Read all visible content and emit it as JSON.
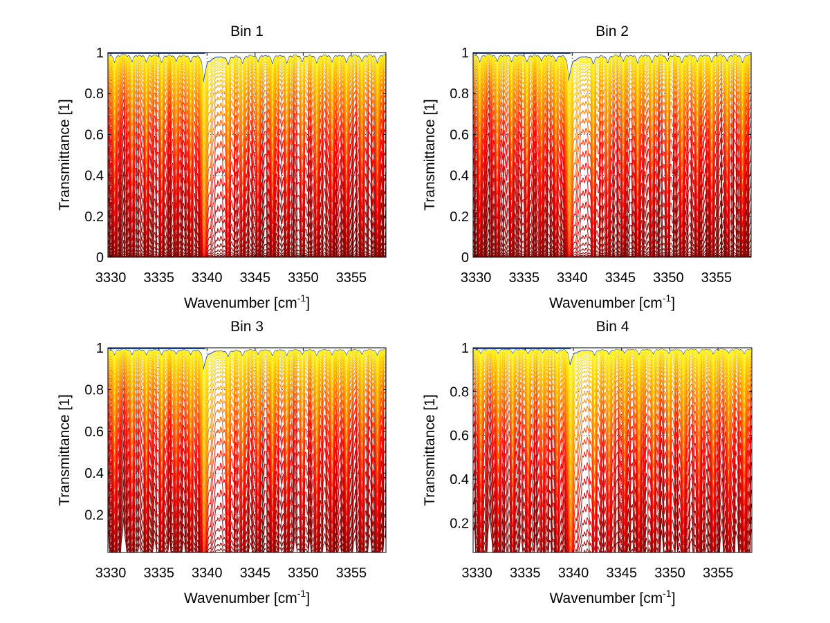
{
  "figure": {
    "background": "#ffffff"
  },
  "chart_data": [
    {
      "type": "line",
      "title": "Bin 1",
      "xlabel": "Wavenumber [cm",
      "xlabel_superscript": "-1",
      "xlabel_suffix": "]",
      "ylabel": "Transmittance [1]",
      "xlim": [
        3329.7,
        3358.6
      ],
      "ylim": [
        0,
        1
      ],
      "xticks": [
        3330,
        3335,
        3340,
        3345,
        3350,
        3355
      ],
      "xtick_labels": [
        "3330",
        "3335",
        "3340",
        "3345",
        "3350",
        "3355"
      ],
      "yticks": [
        0,
        0.2,
        0.4,
        0.6,
        0.8,
        1
      ],
      "ytick_labels": [
        "0",
        "0.2",
        "0.4",
        "0.6",
        "0.8",
        "1"
      ],
      "grid": true,
      "series_count": 40,
      "colormap": "hot (yellow near T=1, orange, red, dark red at low T; blue trace at T=1)",
      "line_centers_cm-1": [
        3330.4,
        3332.2,
        3333.7,
        3335.3,
        3336.8,
        3338.3,
        3339.8,
        3342.2,
        3343.7,
        3345.3,
        3346.8,
        3348.3,
        3349.9,
        3351.4,
        3353.0,
        3354.5,
        3356.1,
        3357.7
      ],
      "strong_line_cm-1": 3339.6,
      "depth_scale": 1.0
    },
    {
      "type": "line",
      "title": "Bin 2",
      "xlabel": "Wavenumber [cm",
      "xlabel_superscript": "-1",
      "xlabel_suffix": "]",
      "ylabel": "Transmittance [1]",
      "xlim": [
        3329.7,
        3358.6
      ],
      "ylim": [
        0,
        1
      ],
      "xticks": [
        3330,
        3335,
        3340,
        3345,
        3350,
        3355
      ],
      "xtick_labels": [
        "3330",
        "3335",
        "3340",
        "3345",
        "3350",
        "3355"
      ],
      "yticks": [
        0,
        0.2,
        0.4,
        0.6,
        0.8,
        1
      ],
      "ytick_labels": [
        "0",
        "0.2",
        "0.4",
        "0.6",
        "0.8",
        "1"
      ],
      "grid": true,
      "series_count": 40,
      "colormap": "hot (yellow near T=1, orange, red, dark red at low T; blue trace at T=1)",
      "line_centers_cm-1": [
        3330.4,
        3332.2,
        3333.7,
        3335.3,
        3336.8,
        3338.3,
        3339.8,
        3342.2,
        3343.7,
        3345.3,
        3346.8,
        3348.3,
        3349.9,
        3351.4,
        3353.0,
        3354.5,
        3356.1,
        3357.7
      ],
      "strong_line_cm-1": 3339.6,
      "depth_scale": 0.95
    },
    {
      "type": "line",
      "title": "Bin 3",
      "xlabel": "Wavenumber [cm",
      "xlabel_superscript": "-1",
      "xlabel_suffix": "]",
      "ylabel": "Transmittance [1]",
      "xlim": [
        3329.7,
        3358.6
      ],
      "ylim": [
        0.02,
        1
      ],
      "xticks": [
        3330,
        3335,
        3340,
        3345,
        3350,
        3355
      ],
      "xtick_labels": [
        "3330",
        "3335",
        "3340",
        "3345",
        "3350",
        "3355"
      ],
      "yticks": [
        0.2,
        0.4,
        0.6,
        0.8,
        1
      ],
      "ytick_labels": [
        "0.2",
        "0.4",
        "0.6",
        "0.8",
        "1"
      ],
      "grid": true,
      "series_count": 34,
      "colormap": "hot (yellow near T=1, orange, red, dark red at low T; blue trace at T=1)",
      "line_centers_cm-1": [
        3330.4,
        3332.2,
        3333.7,
        3335.3,
        3336.8,
        3338.3,
        3339.8,
        3342.2,
        3343.7,
        3345.3,
        3346.8,
        3348.3,
        3349.9,
        3351.4,
        3353.0,
        3354.5,
        3356.1,
        3357.7
      ],
      "strong_line_cm-1": 3339.6,
      "depth_scale": 0.7
    },
    {
      "type": "line",
      "title": "Bin 4",
      "xlabel": "Wavenumber [cm",
      "xlabel_superscript": "-1",
      "xlabel_suffix": "]",
      "ylabel": "Transmittance [1]",
      "xlim": [
        3329.6,
        3358.5
      ],
      "ylim": [
        0.065,
        1
      ],
      "xticks": [
        3330,
        3335,
        3340,
        3345,
        3350,
        3355
      ],
      "xtick_labels": [
        "3330",
        "3335",
        "3340",
        "3345",
        "3350",
        "3355"
      ],
      "yticks": [
        0.2,
        0.4,
        0.6,
        0.8,
        1
      ],
      "ytick_labels": [
        "0.2",
        "0.4",
        "0.6",
        "0.8",
        "1"
      ],
      "grid": true,
      "series_count": 34,
      "colormap": "hot (yellow near T=1, orange, red, dark red at low T; blue trace at T=1)",
      "line_centers_cm-1": [
        3330.4,
        3332.2,
        3333.7,
        3335.3,
        3336.8,
        3338.3,
        3339.8,
        3342.2,
        3343.7,
        3345.3,
        3346.8,
        3348.3,
        3349.9,
        3351.4,
        3353.0,
        3354.5,
        3356.1,
        3357.7
      ],
      "strong_line_cm-1": 3339.6,
      "depth_scale": 0.55
    }
  ]
}
